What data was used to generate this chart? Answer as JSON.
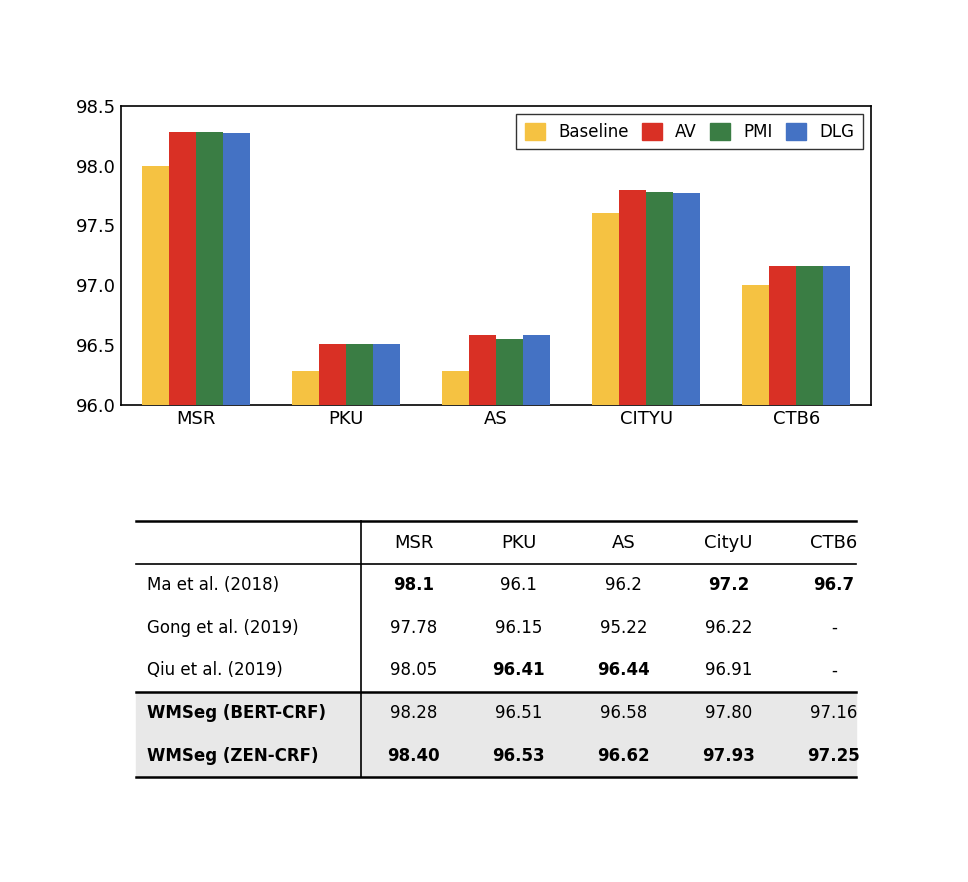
{
  "categories": [
    "MSR",
    "PKU",
    "AS",
    "CITYU",
    "CTB6"
  ],
  "series": {
    "Baseline": [
      98.0,
      96.28,
      96.28,
      97.6,
      97.0
    ],
    "AV": [
      98.28,
      96.51,
      96.58,
      97.8,
      97.16
    ],
    "PMI": [
      98.28,
      96.51,
      96.55,
      97.78,
      97.16
    ],
    "DLG": [
      98.27,
      96.51,
      96.58,
      97.77,
      97.16
    ]
  },
  "colors": {
    "Baseline": "#F5C242",
    "AV": "#D93025",
    "PMI": "#3A7D44",
    "DLG": "#4472C4"
  },
  "ylim": [
    96.0,
    98.5
  ],
  "yticks": [
    96.0,
    96.5,
    97.0,
    97.5,
    98.0,
    98.5
  ],
  "bar_width": 0.18,
  "legend_labels": [
    "Baseline",
    "AV",
    "PMI",
    "DLG"
  ],
  "table": {
    "col_headers": [
      "",
      "MSR",
      "PKU",
      "AS",
      "CityU",
      "CTB6"
    ],
    "col_widths": [
      0.3,
      0.14,
      0.14,
      0.14,
      0.14,
      0.14
    ],
    "rows": [
      {
        "label": "Ma et al. (2018)",
        "values": [
          "98.1",
          "96.1",
          "96.2",
          "97.2",
          "96.7"
        ],
        "bold": [
          true,
          false,
          false,
          true,
          true
        ],
        "shaded": false
      },
      {
        "label": "Gong et al. (2019)",
        "values": [
          "97.78",
          "96.15",
          "95.22",
          "96.22",
          "-"
        ],
        "bold": [
          false,
          false,
          false,
          false,
          false
        ],
        "shaded": false
      },
      {
        "label": "Qiu et al. (2019)",
        "values": [
          "98.05",
          "96.41",
          "96.44",
          "96.91",
          "-"
        ],
        "bold": [
          false,
          true,
          true,
          false,
          false
        ],
        "shaded": false
      },
      {
        "label": "WMSeg (BERT-CRF)",
        "values": [
          "98.28",
          "96.51",
          "96.58",
          "97.80",
          "97.16"
        ],
        "bold": [
          false,
          false,
          false,
          false,
          false
        ],
        "shaded": true
      },
      {
        "label": "WMSeg (ZEN-CRF)",
        "values": [
          "98.40",
          "96.53",
          "96.62",
          "97.93",
          "97.25"
        ],
        "bold": [
          true,
          true,
          true,
          true,
          true
        ],
        "shaded": true
      }
    ]
  }
}
